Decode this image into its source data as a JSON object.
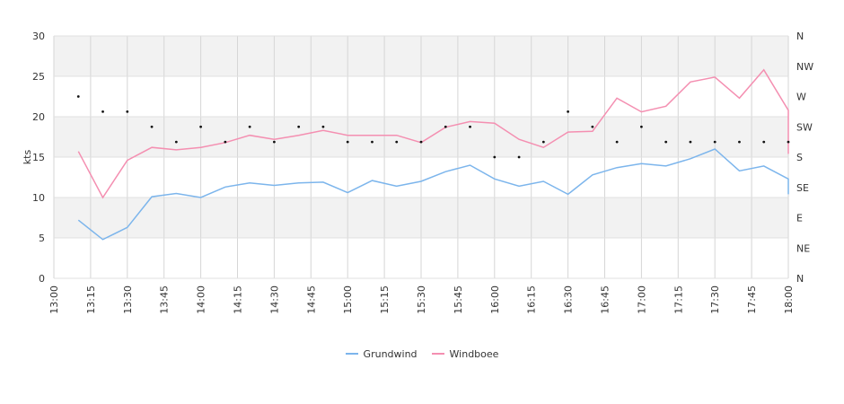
{
  "chart_data": {
    "type": "line",
    "xlabel": "",
    "ylabel": "kts",
    "ylim": [
      0,
      30
    ],
    "yticks": [
      0,
      5,
      10,
      15,
      20,
      25,
      30
    ],
    "xlim": [
      "13:00",
      "18:00"
    ],
    "xticks": [
      "13:00",
      "13:15",
      "13:30",
      "13:45",
      "14:00",
      "14:15",
      "14:30",
      "14:45",
      "15:00",
      "15:15",
      "15:30",
      "15:45",
      "16:00",
      "16:15",
      "16:30",
      "16:45",
      "17:00",
      "17:15",
      "17:30",
      "17:45",
      "18:00"
    ],
    "y2ticks": [
      "N",
      "NE",
      "E",
      "SE",
      "S",
      "SW",
      "W",
      "NW",
      "N"
    ],
    "grid": true,
    "legend_position": "bottom",
    "x": [
      "13:10",
      "13:20",
      "13:30",
      "13:40",
      "13:50",
      "14:00",
      "14:10",
      "14:20",
      "14:30",
      "14:40",
      "14:50",
      "15:00",
      "15:10",
      "15:20",
      "15:30",
      "15:40",
      "15:50",
      "16:00",
      "16:10",
      "16:20",
      "16:30",
      "16:40",
      "16:50",
      "17:00",
      "17:10",
      "17:20",
      "17:30",
      "17:40",
      "17:50",
      "18:00",
      "18:00"
    ],
    "series": [
      {
        "name": "Grundwind",
        "color": "#7cb5ec",
        "values": [
          7.2,
          4.8,
          6.3,
          10.1,
          10.5,
          10.0,
          11.3,
          11.8,
          11.5,
          11.8,
          11.9,
          10.6,
          12.1,
          11.4,
          12.0,
          13.2,
          14.0,
          12.3,
          11.4,
          12.0,
          10.4,
          12.8,
          13.7,
          14.2,
          13.9,
          14.8,
          16.0,
          13.3,
          13.9,
          12.3,
          10.4
        ]
      },
      {
        "name": "Windboee",
        "color": "#f48fb1",
        "values": [
          15.7,
          10.0,
          14.6,
          16.2,
          15.9,
          16.2,
          16.8,
          17.7,
          17.2,
          17.7,
          18.3,
          17.7,
          17.7,
          17.7,
          16.8,
          18.7,
          19.4,
          19.2,
          17.2,
          16.2,
          18.1,
          18.2,
          22.3,
          20.6,
          21.3,
          24.3,
          24.9,
          22.3,
          25.8,
          20.8,
          15.4
        ]
      }
    ],
    "direction_dots": {
      "scale": "compass 0-8 (N=0, NE=1, E=2, SE=3, S=4, SW=5, W=6, NW=7, N=8)",
      "x": [
        "13:10",
        "13:20",
        "13:30",
        "13:40",
        "13:50",
        "14:00",
        "14:10",
        "14:20",
        "14:30",
        "14:40",
        "14:50",
        "15:00",
        "15:10",
        "15:20",
        "15:30",
        "15:40",
        "15:50",
        "16:00",
        "16:10",
        "16:20",
        "16:30",
        "16:40",
        "16:50",
        "17:00",
        "17:10",
        "17:20",
        "17:30",
        "17:40",
        "17:50",
        "18:00"
      ],
      "values": [
        6.0,
        5.5,
        5.5,
        5.0,
        4.5,
        5.0,
        4.5,
        5.0,
        4.5,
        5.0,
        5.0,
        4.5,
        4.5,
        4.5,
        4.5,
        5.0,
        5.0,
        4.0,
        4.0,
        4.5,
        5.5,
        5.0,
        4.5,
        5.0,
        4.5,
        4.5,
        4.5,
        4.5,
        4.5,
        4.5
      ]
    }
  }
}
